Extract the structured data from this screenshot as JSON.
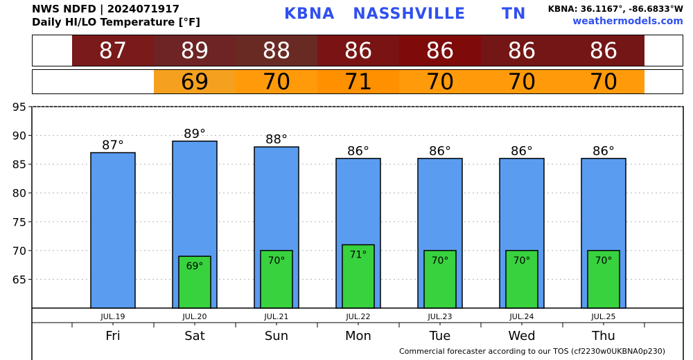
{
  "header": {
    "line1": "NWS NDFD | 2024071917",
    "line2": "Daily HI/LO Temperature [°F]",
    "station_title": "KBNA   NASSHVILLE      TN",
    "coords": "KBNA: 36.1167°, -86.6833°W",
    "site": "weathermodels.com"
  },
  "footer": "Commercial forecaster according to our TOS (cf2230w0UKBNA0p230)",
  "colors": {
    "hi_bar": "#5a9cf0",
    "lo_bar": "#38d23e",
    "hi_band": [
      "#7a1a1a",
      "#6e2424",
      "#6a2a24",
      "#7a1414",
      "#7e0a0a",
      "#741616",
      "#741616"
    ],
    "lo_band": [
      "#f5a01e",
      "#ff9a0a",
      "#ff9000",
      "#ff9a0a",
      "#ff9a0a",
      "#ff9a0a"
    ],
    "title_blue": "#3050ee"
  },
  "chart_data": {
    "type": "bar",
    "categories": [
      "Fri",
      "Sat",
      "Sun",
      "Mon",
      "Tue",
      "Wed",
      "Thu"
    ],
    "dates": [
      "JUL.19",
      "JUL.20",
      "JUL.21",
      "JUL.22",
      "JUL.23",
      "JUL.24",
      "JUL.25"
    ],
    "series": [
      {
        "name": "HI",
        "values": [
          87,
          89,
          88,
          86,
          86,
          86,
          86
        ]
      },
      {
        "name": "LO",
        "values": [
          null,
          69,
          70,
          71,
          70,
          70,
          70
        ]
      }
    ],
    "hi_labels": [
      "87°",
      "89°",
      "88°",
      "86°",
      "86°",
      "86°",
      "86°"
    ],
    "lo_labels": [
      "",
      "69°",
      "70°",
      "71°",
      "70°",
      "70°",
      "70°"
    ],
    "hi_band_labels": [
      "87",
      "89",
      "88",
      "86",
      "86",
      "86",
      "86"
    ],
    "lo_band_labels": [
      "",
      "69",
      "70",
      "71",
      "70",
      "70",
      "70"
    ],
    "ylim": [
      60,
      95
    ],
    "yticks": [
      "95",
      "90",
      "85",
      "80",
      "75",
      "70",
      "65"
    ],
    "grid": true,
    "title": "",
    "xlabel": "",
    "ylabel": ""
  }
}
